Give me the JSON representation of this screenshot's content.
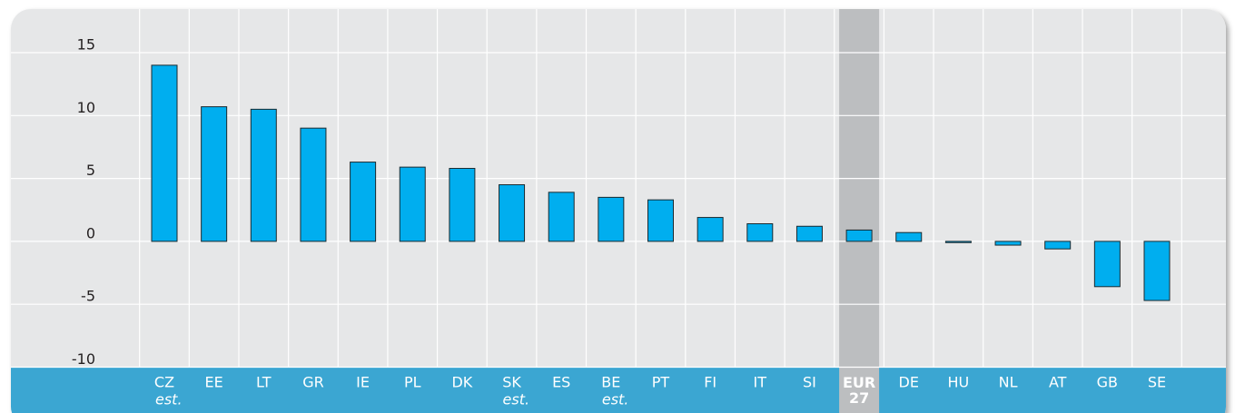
{
  "chart_data": {
    "type": "bar",
    "categories": [
      "CZ",
      "EE",
      "LT",
      "GR",
      "IE",
      "PL",
      "DK",
      "SK",
      "ES",
      "BE",
      "PT",
      "FI",
      "IT",
      "SI",
      "EUR 27",
      "DE",
      "HU",
      "NL",
      "AT",
      "GB",
      "SE"
    ],
    "notes": [
      "est.",
      null,
      null,
      null,
      null,
      null,
      null,
      "est.",
      null,
      "est.",
      null,
      null,
      null,
      null,
      null,
      null,
      null,
      null,
      null,
      null,
      null
    ],
    "values": [
      14.0,
      10.7,
      10.5,
      9.0,
      6.3,
      5.9,
      5.8,
      4.5,
      3.9,
      3.5,
      3.3,
      1.9,
      1.4,
      1.2,
      0.9,
      0.7,
      -0.1,
      -0.3,
      -0.6,
      -3.6,
      -4.7
    ],
    "color": "#00aeef",
    "highlight": "EUR 27",
    "ylim": [
      -10,
      15
    ],
    "yticks": [
      -10,
      -5,
      0,
      5,
      10,
      15
    ],
    "grid": true
  }
}
